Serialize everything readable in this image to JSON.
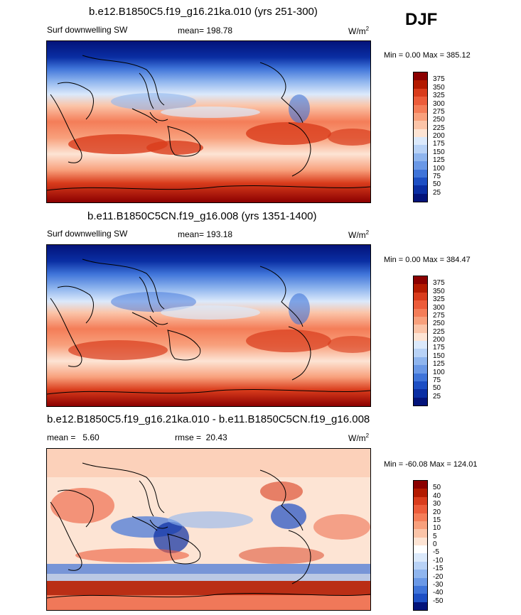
{
  "season": "DJF",
  "panels": [
    {
      "id": "p1",
      "title": "b.e12.B1850C5.f19_g16.21ka.010 (yrs 251-300)",
      "left_label": "Surf downwelling SW",
      "center_label": "mean= 198.78",
      "units": "W/m",
      "units_exp": "2",
      "minmax": "Min =   0.00 Max = 385.12",
      "colorbar_labels": [
        "375",
        "350",
        "325",
        "300",
        "275",
        "250",
        "225",
        "200",
        "175",
        "150",
        "125",
        "100",
        "75",
        "50",
        "25"
      ]
    },
    {
      "id": "p2",
      "title": "b.e11.B1850C5CN.f19_g16.008 (yrs 1351-1400)",
      "left_label": "Surf downwelling SW",
      "center_label": "mean= 193.18",
      "units": "W/m",
      "units_exp": "2",
      "minmax": "Min =   0.00 Max = 384.47",
      "colorbar_labels": [
        "375",
        "350",
        "325",
        "300",
        "275",
        "250",
        "225",
        "200",
        "175",
        "150",
        "125",
        "100",
        "75",
        "50",
        "25"
      ]
    },
    {
      "id": "p3",
      "title": "b.e12.B1850C5.f19_g16.21ka.010 - b.e11.B1850C5CN.f19_g16.008",
      "left_label": "mean =   5.60",
      "center_label": "rmse =  20.43",
      "units": "W/m",
      "units_exp": "2",
      "minmax": "Min = -60.08 Max = 124.01",
      "colorbar_labels": [
        "50",
        "40",
        "30",
        "20",
        "15",
        "10",
        "5",
        "0",
        "-5",
        "-10",
        "-15",
        "-20",
        "-30",
        "-40",
        "-50"
      ]
    }
  ],
  "colors": {
    "absolute_scale": [
      "#8b0000",
      "#b31a00",
      "#d93c1c",
      "#ec5c3a",
      "#f47d58",
      "#f8a07c",
      "#fbc4a8",
      "#fde4d4",
      "#dbe9fb",
      "#b8d2f6",
      "#8fb5ee",
      "#6a98e6",
      "#3f74d9",
      "#1d4fc4",
      "#0a2ea3",
      "#03137a"
    ],
    "anomaly_scale": [
      "#8b0000",
      "#b31a00",
      "#d93c1c",
      "#ec5c3a",
      "#f47d58",
      "#f8a07c",
      "#fbc4a8",
      "#fde4d4",
      "#ffffff",
      "#dbe9fb",
      "#b8d2f6",
      "#8fb5ee",
      "#6a98e6",
      "#3f74d9",
      "#1d4fc4",
      "#03137a"
    ]
  }
}
